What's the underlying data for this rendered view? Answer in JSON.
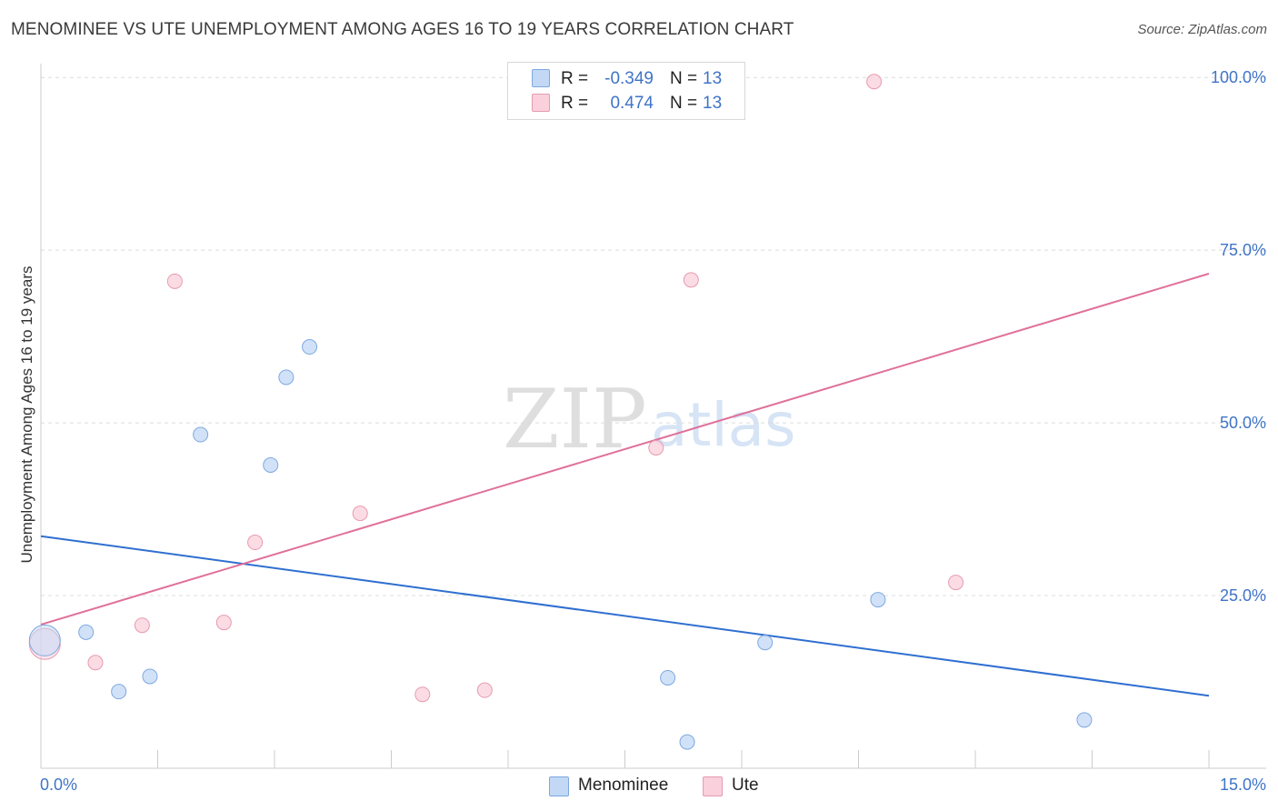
{
  "header": {
    "title": "MENOMINEE VS UTE UNEMPLOYMENT AMONG AGES 16 TO 19 YEARS CORRELATION CHART",
    "source": "Source: ZipAtlas.com"
  },
  "watermark": {
    "zip": "ZIP",
    "atlas": "atlas"
  },
  "legend": {
    "rows": [
      {
        "r_label": "R =",
        "r_value": "-0.349",
        "n_label": "N =",
        "n_value": "13",
        "color": "#a9c8f2"
      },
      {
        "r_label": "R =",
        "r_value": "0.474",
        "n_label": "N =",
        "n_value": "13",
        "color": "#f7bfcf"
      }
    ]
  },
  "bottom_legend": [
    {
      "label": "Menominee",
      "color": "#a9c8f2"
    },
    {
      "label": "Ute",
      "color": "#f7bfcf"
    }
  ],
  "colors": {
    "menominee_fill": "#c2d8f5",
    "menominee_stroke": "#7ea8e0",
    "menominee_line": "#2f6fd0",
    "ute_fill": "#f9d0dc",
    "ute_stroke": "#e79ab1",
    "ute_line": "#e0709a",
    "axis_text": "#3f74c8",
    "grid": "#dcdcdc"
  },
  "chart_data": {
    "type": "scatter",
    "title": "MENOMINEE VS UTE UNEMPLOYMENT AMONG AGES 16 TO 19 YEARS CORRELATION CHART",
    "xlabel": "",
    "ylabel": "Unemployment Among Ages 16 to 19 years",
    "xlim": [
      0,
      15
    ],
    "ylim": [
      0,
      102
    ],
    "x_tick_labels": [
      {
        "value": 0,
        "label": "0.0%"
      },
      {
        "value": 15,
        "label": "15.0%"
      }
    ],
    "y_tick_labels": [
      {
        "value": 25,
        "label": "25.0%"
      },
      {
        "value": 50,
        "label": "50.0%"
      },
      {
        "value": 75,
        "label": "75.0%"
      },
      {
        "value": 100,
        "label": "100.0%"
      }
    ],
    "grid": true,
    "legend_position": "top-center",
    "series": [
      {
        "name": "Menominee",
        "points": [
          {
            "x": 0.05,
            "y": 18.5,
            "big": true
          },
          {
            "x": 0.58,
            "y": 19.7
          },
          {
            "x": 1.0,
            "y": 11.1
          },
          {
            "x": 1.4,
            "y": 13.3
          },
          {
            "x": 2.05,
            "y": 48.3
          },
          {
            "x": 2.95,
            "y": 43.9
          },
          {
            "x": 3.15,
            "y": 56.6
          },
          {
            "x": 3.45,
            "y": 61.0
          },
          {
            "x": 8.05,
            "y": 13.1
          },
          {
            "x": 8.3,
            "y": 3.8
          },
          {
            "x": 9.3,
            "y": 18.2
          },
          {
            "x": 10.75,
            "y": 24.4
          },
          {
            "x": 13.4,
            "y": 7.0
          }
        ],
        "trend": {
          "x": [
            0,
            15
          ],
          "y": [
            33.6,
            10.5
          ]
        }
      },
      {
        "name": "Ute",
        "points": [
          {
            "x": 0.05,
            "y": 18.0,
            "big": true
          },
          {
            "x": 0.7,
            "y": 15.3
          },
          {
            "x": 1.3,
            "y": 20.7
          },
          {
            "x": 1.72,
            "y": 70.5
          },
          {
            "x": 2.35,
            "y": 21.1
          },
          {
            "x": 2.75,
            "y": 32.7
          },
          {
            "x": 4.1,
            "y": 36.9
          },
          {
            "x": 4.9,
            "y": 10.7
          },
          {
            "x": 5.7,
            "y": 11.3
          },
          {
            "x": 7.9,
            "y": 46.4
          },
          {
            "x": 8.35,
            "y": 70.7
          },
          {
            "x": 10.7,
            "y": 99.4
          },
          {
            "x": 11.75,
            "y": 26.9
          }
        ],
        "trend": {
          "x": [
            0,
            15
          ],
          "y": [
            20.8,
            71.6
          ]
        }
      }
    ]
  }
}
